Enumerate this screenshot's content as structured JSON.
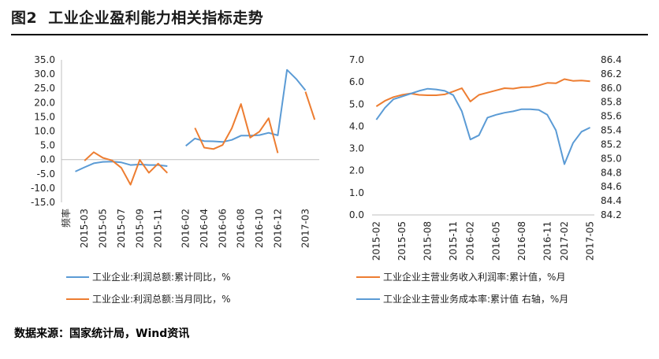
{
  "header": {
    "figure_number": "图2",
    "title": "工业企业盈利能力相关指标走势"
  },
  "footer": {
    "source": "数据来源：国家统计局，Wind资讯"
  },
  "colors": {
    "blue": "#5b9bd5",
    "orange": "#ed7d31",
    "axis": "#bfbfbf"
  },
  "chart_data": [
    {
      "type": "line",
      "title": "",
      "ylim": [
        -15,
        35
      ],
      "yticks": [
        "35.0",
        "30.0",
        "25.0",
        "20.0",
        "15.0",
        "10.0",
        "5.0",
        "0.0",
        "-5.0",
        "-10.0",
        "-15.0"
      ],
      "x": [
        "频率",
        "2015-02",
        "2015-03",
        "2015-04",
        "2015-05",
        "2015-06",
        "2015-07",
        "2015-08",
        "2015-09",
        "2015-10",
        "2015-11",
        "2015-12",
        "2016-01",
        "2016-02",
        "2016-03",
        "2016-04",
        "2016-05",
        "2016-06",
        "2016-07",
        "2016-08",
        "2016-09",
        "2016-10",
        "2016-11",
        "2016-12",
        "2017-01",
        "2017-02",
        "2017-03",
        "2017-04"
      ],
      "xtick_labels": [
        "频率",
        "2015-03",
        "2015-05",
        "2015-07",
        "2015-09",
        "2015-11",
        "2016-02",
        "2016-04",
        "2016-06",
        "2016-08",
        "2016-10",
        "2016-12",
        "2017-03"
      ],
      "legend": "bottom",
      "series": [
        {
          "name": "工业企业:利润总额:累计同比，%",
          "color": "#5b9bd5",
          "values": [
            null,
            -4.2,
            -2.7,
            -1.3,
            -0.8,
            -0.7,
            -1.0,
            -1.9,
            -1.7,
            -1.9,
            -1.9,
            -2.3,
            null,
            4.8,
            7.4,
            6.5,
            6.4,
            6.2,
            6.9,
            8.4,
            8.4,
            8.6,
            9.4,
            8.5,
            31.5,
            28.3,
            24.3,
            null
          ]
        },
        {
          "name": "工业企业:利润总额:当月同比，%",
          "color": "#ed7d31",
          "values": [
            null,
            null,
            -0.4,
            2.6,
            0.6,
            -0.3,
            -2.9,
            -8.8,
            -0.1,
            -4.6,
            -1.4,
            -4.7,
            null,
            null,
            11.1,
            4.2,
            3.7,
            5.1,
            11.0,
            19.5,
            7.7,
            9.8,
            14.5,
            2.3,
            null,
            null,
            23.8,
            14.0
          ]
        }
      ]
    },
    {
      "type": "line",
      "title": "",
      "ylim": [
        0.0,
        7.0
      ],
      "y2lim": [
        84.2,
        86.4
      ],
      "yticks": [
        "7.0",
        "6.0",
        "5.0",
        "4.0",
        "3.0",
        "2.0",
        "1.0",
        "0.0"
      ],
      "y2ticks": [
        "86.4",
        "86.2",
        "86.0",
        "85.8",
        "85.6",
        "85.4",
        "85.2",
        "85.0",
        "84.8",
        "84.6",
        "84.4",
        "84.2"
      ],
      "x": [
        "2015-02",
        "2015-03",
        "2015-04",
        "2015-05",
        "2015-06",
        "2015-07",
        "2015-08",
        "2015-09",
        "2015-10",
        "2015-11",
        "2015-12",
        "2016-02",
        "2016-03",
        "2016-04",
        "2016-05",
        "2016-06",
        "2016-07",
        "2016-08",
        "2016-09",
        "2016-10",
        "2016-11",
        "2016-12",
        "2017-02",
        "2017-03",
        "2017-04",
        "2017-05"
      ],
      "xtick_labels": [
        "2015-02",
        "2015-05",
        "2015-08",
        "2015-11",
        "2016-02",
        "2016-05",
        "2016-08",
        "2016-11",
        "2017-02",
        "2017-05"
      ],
      "legend": "bottom",
      "series": [
        {
          "name": "工业企业主营业务收入利润率:累计值，%月",
          "color": "#ed7d31",
          "axis": "left",
          "values": [
            4.9,
            5.15,
            5.32,
            5.42,
            5.48,
            5.42,
            5.4,
            5.4,
            5.44,
            5.57,
            5.72,
            5.12,
            5.42,
            5.52,
            5.62,
            5.72,
            5.7,
            5.76,
            5.77,
            5.85,
            5.96,
            5.94,
            6.13,
            6.05,
            6.07,
            6.03
          ]
        },
        {
          "name": "工业企业主营业务成本率:累计值 右轴，%月",
          "color": "#5b9bd5",
          "axis": "right",
          "values": [
            85.55,
            85.72,
            85.84,
            85.88,
            85.92,
            85.96,
            85.99,
            85.98,
            85.96,
            85.9,
            85.67,
            85.27,
            85.33,
            85.58,
            85.62,
            85.65,
            85.67,
            85.7,
            85.7,
            85.69,
            85.62,
            85.4,
            84.92,
            85.22,
            85.38,
            85.44
          ]
        }
      ]
    }
  ]
}
